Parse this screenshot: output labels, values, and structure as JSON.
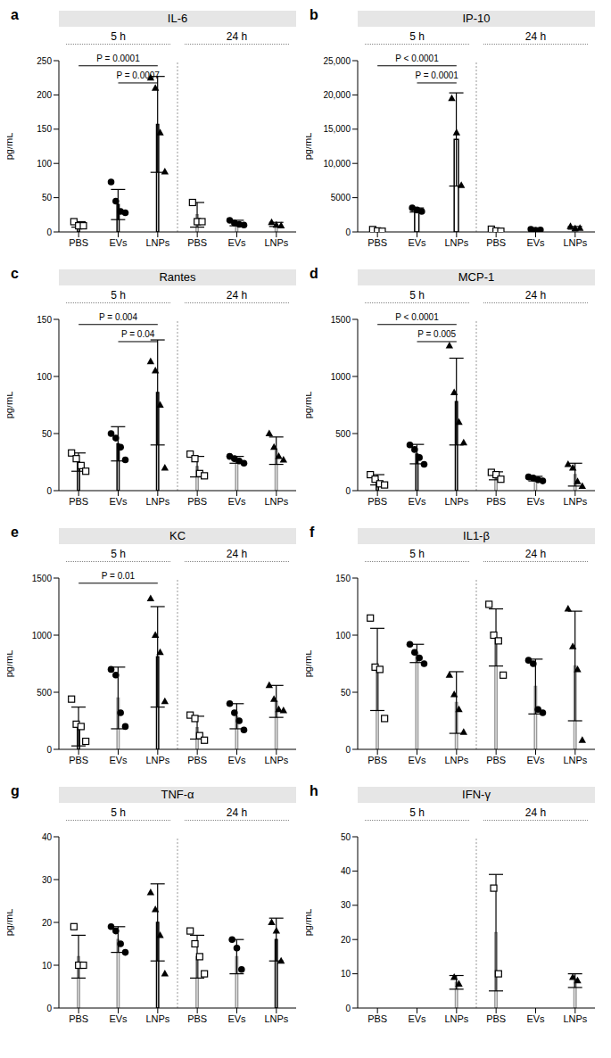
{
  "chart_data": [
    {
      "type": "bar",
      "panel": "a",
      "title": "IL-6",
      "groups": [
        "5 h",
        "24 h"
      ],
      "categories": [
        "PBS",
        "EVs",
        "LNPs",
        "PBS",
        "EVs",
        "LNPs"
      ],
      "values": [
        11,
        40,
        157,
        25,
        13,
        11
      ],
      "error": [
        4,
        22,
        70,
        18,
        4,
        3
      ],
      "points": [
        [
          15,
          9,
          9
        ],
        [
          73,
          45,
          30,
          28
        ],
        [
          225,
          210,
          145,
          88
        ],
        [
          43,
          15,
          15
        ],
        [
          17,
          13,
          11,
          10
        ],
        [
          14,
          10,
          9
        ]
      ],
      "markers": [
        "square",
        "circle",
        "triangle",
        "square",
        "circle",
        "triangle"
      ],
      "colors": [
        "#000000",
        "#000000",
        "#000000",
        "#999999",
        "#999999",
        "#999999"
      ],
      "ylabel": "pg/mL",
      "ylim": [
        0,
        250
      ],
      "yticks": [
        0,
        50,
        100,
        150,
        200,
        250
      ],
      "annotations": [
        {
          "from": 0,
          "to": 2,
          "label": "P = 0.0001"
        },
        {
          "from": 1,
          "to": 2,
          "label": "P = 0.0007"
        }
      ]
    },
    {
      "type": "bar",
      "panel": "b",
      "title": "IP-10",
      "groups": [
        "5 h",
        "24 h"
      ],
      "categories": [
        "PBS",
        "EVs",
        "LNPs",
        "PBS",
        "EVs",
        "LNPs"
      ],
      "values": [
        200,
        3200,
        13500,
        250,
        300,
        600
      ],
      "error": [
        150,
        300,
        6800,
        200,
        100,
        200
      ],
      "points": [
        [
          350,
          150,
          100
        ],
        [
          3500,
          3200,
          3000
        ],
        [
          19500,
          14500,
          6800
        ],
        [
          400,
          150,
          100
        ],
        [
          400,
          250,
          300
        ],
        [
          800,
          500,
          550
        ]
      ],
      "markers": [
        "square",
        "circle",
        "triangle",
        "square",
        "circle",
        "triangle"
      ],
      "colors": [
        "#000000",
        "#000000",
        "#000000",
        "#999999",
        "#999999",
        "#999999"
      ],
      "ylabel": "pg/mL",
      "ylim": [
        0,
        25000
      ],
      "yticks": [
        0,
        5000,
        {
          "value": 10000,
          "label": "10,000"
        },
        {
          "value": 15000,
          "label": "15,000"
        },
        {
          "value": 20000,
          "label": "20,000"
        },
        {
          "value": 25000,
          "label": "25,000"
        }
      ],
      "annotations": [
        {
          "from": 0,
          "to": 2,
          "label": "P < 0.0001"
        },
        {
          "from": 1,
          "to": 2,
          "label": "P = 0.0001"
        }
      ]
    },
    {
      "type": "bar",
      "panel": "c",
      "title": "Rantes",
      "groups": [
        "5 h",
        "24 h"
      ],
      "categories": [
        "PBS",
        "EVs",
        "LNPs",
        "PBS",
        "EVs",
        "LNPs"
      ],
      "values": [
        25,
        41,
        86,
        21,
        27,
        35
      ],
      "error": [
        8,
        15,
        46,
        9,
        3,
        12
      ],
      "points": [
        [
          33,
          28,
          22,
          17
        ],
        [
          50,
          46,
          38,
          27
        ],
        [
          113,
          105,
          75,
          20
        ],
        [
          32,
          28,
          15,
          13
        ],
        [
          30,
          28,
          26,
          24
        ],
        [
          50,
          38,
          30,
          27
        ]
      ],
      "markers": [
        "square",
        "circle",
        "triangle",
        "square",
        "circle",
        "triangle"
      ],
      "colors": [
        "#000000",
        "#000000",
        "#000000",
        "#999999",
        "#999999",
        "#999999"
      ],
      "ylabel": "pg/mL",
      "ylim": [
        0,
        150
      ],
      "yticks": [
        0,
        50,
        100,
        150
      ],
      "annotations": [
        {
          "from": 0,
          "to": 2,
          "label": "P = 0.004"
        },
        {
          "from": 1,
          "to": 2,
          "label": "P = 0.04"
        }
      ]
    },
    {
      "type": "bar",
      "panel": "d",
      "title": "MCP-1",
      "groups": [
        "5 h",
        "24 h"
      ],
      "categories": [
        "PBS",
        "EVs",
        "LNPs",
        "PBS",
        "EVs",
        "LNPs"
      ],
      "values": [
        95,
        320,
        780,
        130,
        105,
        140
      ],
      "error": [
        45,
        85,
        380,
        35,
        20,
        100
      ],
      "points": [
        [
          140,
          100,
          60,
          50
        ],
        [
          400,
          360,
          290,
          230
        ],
        [
          1270,
          860,
          600,
          420
        ],
        [
          160,
          140,
          100
        ],
        [
          120,
          110,
          95,
          85
        ],
        [
          230,
          200,
          80,
          40
        ]
      ],
      "markers": [
        "square",
        "circle",
        "triangle",
        "square",
        "circle",
        "triangle"
      ],
      "colors": [
        "#000000",
        "#000000",
        "#000000",
        "#999999",
        "#999999",
        "#999999"
      ],
      "ylabel": "pg/mL",
      "ylim": [
        0,
        1500
      ],
      "yticks": [
        0,
        500,
        1000,
        1500
      ],
      "annotations": [
        {
          "from": 0,
          "to": 2,
          "label": "P < 0.0001"
        },
        {
          "from": 1,
          "to": 2,
          "label": "P = 0.005"
        }
      ]
    },
    {
      "type": "bar",
      "panel": "e",
      "title": "KC",
      "groups": [
        "5 h",
        "24 h"
      ],
      "categories": [
        "PBS",
        "EVs",
        "LNPs",
        "PBS",
        "EVs",
        "LNPs"
      ],
      "values": [
        200,
        450,
        810,
        190,
        290,
        420
      ],
      "error": [
        170,
        270,
        440,
        100,
        110,
        140
      ],
      "points": [
        [
          440,
          220,
          200,
          70
        ],
        [
          700,
          650,
          320,
          200
        ],
        [
          1320,
          1000,
          850,
          420
        ],
        [
          300,
          270,
          120,
          80
        ],
        [
          400,
          320,
          250,
          170
        ],
        [
          560,
          440,
          350,
          340
        ]
      ],
      "markers": [
        "square",
        "circle",
        "triangle",
        "square",
        "circle",
        "triangle"
      ],
      "colors": [
        "#000000",
        "#999999",
        "#000000",
        "#999999",
        "#999999",
        "#999999"
      ],
      "ylabel": "pg/mL",
      "ylim": [
        0,
        1500
      ],
      "yticks": [
        0,
        500,
        1000,
        1500
      ],
      "annotations": [
        {
          "from": 0,
          "to": 2,
          "label": "P = 0.01"
        }
      ]
    },
    {
      "type": "bar",
      "panel": "f",
      "title": "IL1-β",
      "groups": [
        "5 h",
        "24 h"
      ],
      "categories": [
        "PBS",
        "EVs",
        "LNPs",
        "PBS",
        "EVs",
        "LNPs"
      ],
      "values": [
        70,
        84,
        41,
        98,
        55,
        73
      ],
      "error": [
        36,
        8,
        27,
        25,
        24,
        48
      ],
      "points": [
        [
          115,
          72,
          70,
          27
        ],
        [
          92,
          85,
          80,
          75
        ],
        [
          65,
          48,
          35,
          15
        ],
        [
          127,
          100,
          95,
          65
        ],
        [
          78,
          75,
          35,
          32
        ],
        [
          123,
          90,
          70,
          8
        ]
      ],
      "markers": [
        "square",
        "circle",
        "triangle",
        "square",
        "circle",
        "triangle"
      ],
      "colors": [
        "#999999",
        "#999999",
        "#999999",
        "#999999",
        "#999999",
        "#999999"
      ],
      "ylabel": "pg/mL",
      "ylim": [
        0,
        150
      ],
      "yticks": [
        0,
        50,
        100,
        150
      ],
      "annotations": []
    },
    {
      "type": "bar",
      "panel": "g",
      "title": "TNF-α",
      "groups": [
        "5 h",
        "24 h"
      ],
      "categories": [
        "PBS",
        "EVs",
        "LNPs",
        "PBS",
        "EVs",
        "LNPs"
      ],
      "values": [
        12,
        16,
        20,
        12,
        12,
        16
      ],
      "error": [
        5,
        3,
        9,
        5,
        4,
        5
      ],
      "points": [
        [
          19,
          10,
          10
        ],
        [
          19,
          18,
          15,
          13
        ],
        [
          27,
          23,
          17,
          8
        ],
        [
          18,
          15,
          12,
          8
        ],
        [
          16,
          14,
          9
        ],
        [
          20,
          18,
          11
        ]
      ],
      "markers": [
        "square",
        "circle",
        "triangle",
        "square",
        "circle",
        "triangle"
      ],
      "colors": [
        "#999999",
        "#999999",
        "#000000",
        "#999999",
        "#999999",
        "#000000"
      ],
      "ylabel": "pg/mL",
      "ylim": [
        0,
        40
      ],
      "yticks": [
        0,
        10,
        20,
        30,
        40
      ],
      "annotations": []
    },
    {
      "type": "bar",
      "panel": "h",
      "title": "IFN-γ",
      "groups": [
        "5 h",
        "24 h"
      ],
      "categories": [
        "PBS",
        "EVs",
        "LNPs",
        "PBS",
        "EVs",
        "LNPs"
      ],
      "values": [
        null,
        null,
        7.5,
        22,
        null,
        8
      ],
      "error": [
        null,
        null,
        2,
        17,
        null,
        2
      ],
      "points": [
        [],
        [],
        [
          9,
          7
        ],
        [
          35,
          10
        ],
        [],
        [
          9,
          8
        ]
      ],
      "markers": [
        "square",
        "circle",
        "triangle",
        "square",
        "circle",
        "triangle"
      ],
      "colors": [
        "#999999",
        "#999999",
        "#999999",
        "#999999",
        "#999999",
        "#999999"
      ],
      "ylabel": "pg/mL",
      "ylim": [
        0,
        50
      ],
      "yticks": [
        0,
        10,
        20,
        30,
        40,
        50
      ],
      "annotations": []
    }
  ]
}
